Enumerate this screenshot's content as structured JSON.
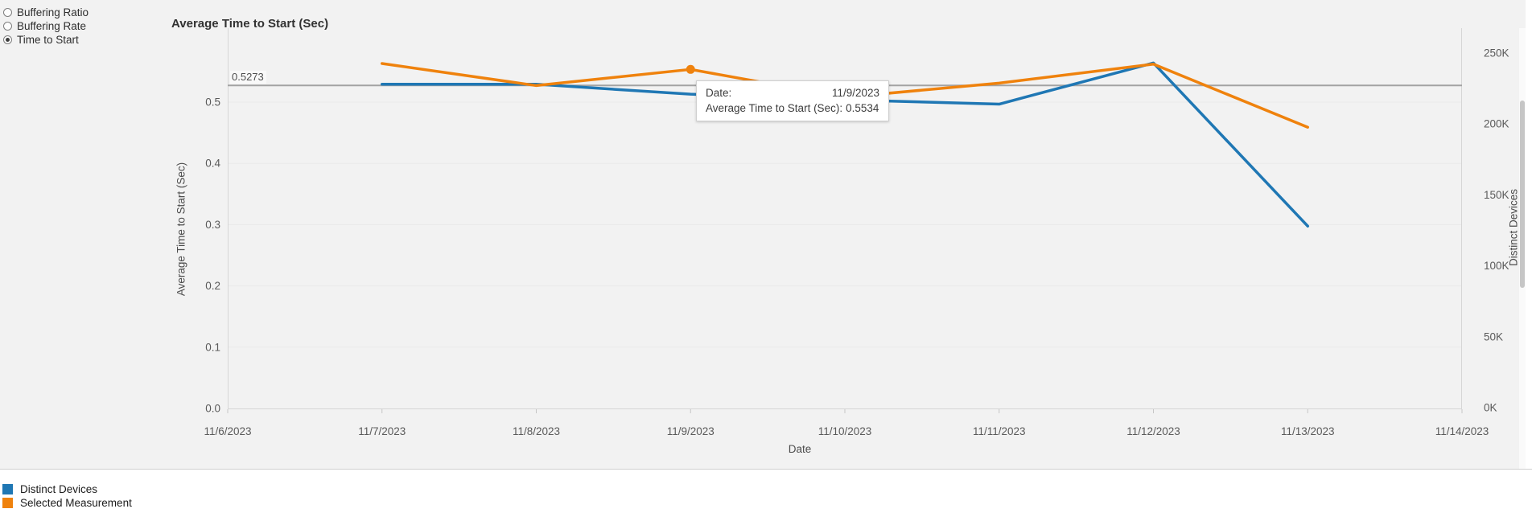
{
  "controls": {
    "options": [
      {
        "label": "Buffering Ratio",
        "selected": false
      },
      {
        "label": "Buffering Rate",
        "selected": false
      },
      {
        "label": "Time to Start",
        "selected": true
      }
    ]
  },
  "title": "Average Time to Start (Sec)",
  "tooltip": {
    "rows": [
      {
        "label": "Date:",
        "value": "11/9/2023"
      },
      {
        "label": "Average Time to Start (Sec):",
        "value": "0.5534"
      }
    ]
  },
  "chart_data": {
    "type": "line",
    "title": "Average Time to Start (Sec)",
    "xlabel": "Date",
    "x_ticks": [
      "11/6/2023",
      "11/7/2023",
      "11/8/2023",
      "11/9/2023",
      "11/10/2023",
      "11/11/2023",
      "11/12/2023",
      "11/13/2023",
      "11/14/2023"
    ],
    "y_left": {
      "label": "Average Time to Start (Sec)",
      "min": 0,
      "max": 0.55,
      "tick_step": 0.1,
      "ticks": [
        "0.0",
        "0.1",
        "0.2",
        "0.3",
        "0.4",
        "0.5"
      ]
    },
    "y_right": {
      "label": "Distinct Devices",
      "min": 0,
      "max": 262000,
      "tick_step": 50000,
      "ticks": [
        "0K",
        "50K",
        "100K",
        "150K",
        "200K",
        "250K"
      ]
    },
    "reference_line": {
      "value": 0.5273,
      "label": "0.5273",
      "color": "#a3a3a3"
    },
    "grid": true,
    "legend_position": "bottom-left",
    "series": [
      {
        "name": "Distinct Devices",
        "axis": "right",
        "color": "#1f77b4",
        "x": [
          "11/7/2023",
          "11/8/2023",
          "11/9/2023",
          "11/10/2023",
          "11/11/2023",
          "11/12/2023",
          "11/13/2023"
        ],
        "values": [
          228000,
          228000,
          221000,
          217000,
          214000,
          243000,
          128000
        ]
      },
      {
        "name": "Selected Measurement",
        "axis": "left",
        "color": "#ef820d",
        "x": [
          "11/7/2023",
          "11/8/2023",
          "11/9/2023",
          "11/10/2023",
          "11/11/2023",
          "11/12/2023",
          "11/13/2023"
        ],
        "values": [
          0.563,
          0.527,
          0.5534,
          0.508,
          0.531,
          0.562,
          0.459
        ],
        "marker_x": "11/9/2023"
      }
    ]
  },
  "legend": {
    "items": [
      {
        "label": "Distinct Devices",
        "color": "#1f77b4"
      },
      {
        "label": "Selected Measurement",
        "color": "#ef820d"
      }
    ]
  }
}
